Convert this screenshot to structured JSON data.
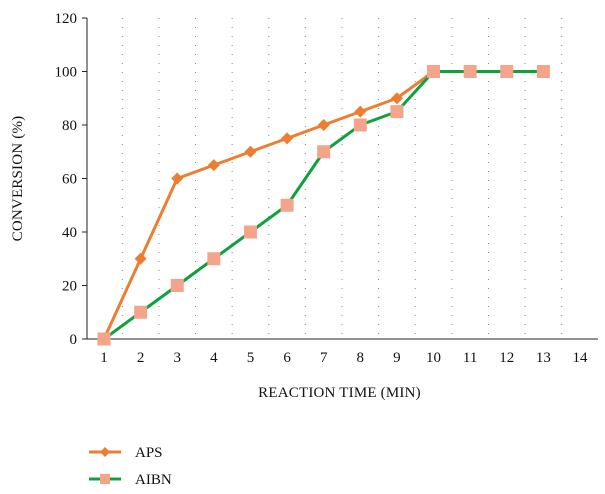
{
  "chart_data": {
    "type": "line",
    "xlabel": "REACTION TIME (MIN)",
    "ylabel": "CONVERSION (%)",
    "x_ticks": [
      1,
      2,
      3,
      4,
      5,
      6,
      7,
      8,
      9,
      10,
      11,
      12,
      13,
      14
    ],
    "y_ticks": [
      0,
      20,
      40,
      60,
      80,
      100,
      120
    ],
    "xlim": [
      1,
      14
    ],
    "ylim": [
      0,
      120
    ],
    "grid": "vertical-dotted",
    "legend_position": "bottom-left",
    "series": [
      {
        "name": "APS",
        "color": "#ED7D31",
        "marker": "diamond",
        "x": [
          1,
          2,
          3,
          4,
          5,
          6,
          7,
          8,
          9,
          10,
          11,
          12,
          13
        ],
        "y": [
          0,
          30,
          60,
          65,
          70,
          75,
          80,
          85,
          90,
          100,
          100,
          100,
          100
        ]
      },
      {
        "name": "AIBN",
        "color": "#0FA040",
        "marker_color": "#F4A48A",
        "marker": "square",
        "x": [
          1,
          2,
          3,
          4,
          5,
          6,
          7,
          8,
          9,
          10,
          11,
          12,
          13
        ],
        "y": [
          0,
          10,
          20,
          30,
          40,
          50,
          70,
          80,
          85,
          100,
          100,
          100,
          100
        ]
      }
    ]
  }
}
